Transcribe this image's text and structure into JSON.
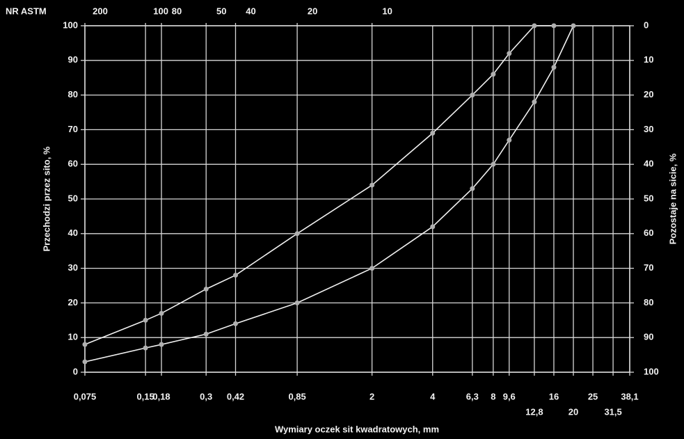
{
  "chart_data": {
    "type": "line",
    "top_axis_label": "NR ASTM",
    "xlabel": "Wymiary oczek sit kwadratowych, mm",
    "ylabel": "Przechodzi przez sito, %",
    "y2label": "Pozostaje na sicie, %",
    "xscale": "log",
    "xlim": [
      0.075,
      38.1
    ],
    "xticks": [
      {
        "value": 0.075,
        "label": "0,075"
      },
      {
        "value": 0.15,
        "label": "0,15"
      },
      {
        "value": 0.18,
        "label": "0,18"
      },
      {
        "value": 0.3,
        "label": "0,3"
      },
      {
        "value": 0.42,
        "label": "0,42"
      },
      {
        "value": 0.85,
        "label": "0,85"
      },
      2,
      4,
      {
        "value": 6.3,
        "label": "6,3"
      },
      8,
      {
        "value": 9.6,
        "label": "9,6"
      },
      {
        "value": 12.8,
        "label": "12,8"
      },
      16,
      20,
      25,
      {
        "value": 31.5,
        "label": "31,5"
      },
      {
        "value": 38.1,
        "label": "38,1"
      }
    ],
    "top_ticks": [
      {
        "value": 0.075,
        "label": "200"
      },
      {
        "value": 0.15,
        "label": "100"
      },
      {
        "value": 0.18,
        "label": "80"
      },
      {
        "value": 0.3,
        "label": "50"
      },
      {
        "value": 0.42,
        "label": "40"
      },
      {
        "value": 0.85,
        "label": "20"
      },
      {
        "value": 2,
        "label": "10"
      }
    ],
    "ylim": [
      0,
      100
    ],
    "yticks": [
      0,
      10,
      20,
      30,
      40,
      50,
      60,
      70,
      80,
      90,
      100
    ],
    "y2lim": [
      100,
      0
    ],
    "y2ticks": [
      0,
      10,
      20,
      30,
      40,
      50,
      60,
      70,
      80,
      90,
      100
    ],
    "grid": true,
    "series": [
      {
        "color": "#f0f0f0",
        "x": [
          0.075,
          0.15,
          0.18,
          0.3,
          0.42,
          0.85,
          2,
          4,
          6.3,
          8,
          9.6,
          12.8,
          16
        ],
        "values": [
          8,
          15,
          17,
          24,
          28,
          40,
          54,
          69,
          80,
          86,
          92,
          100,
          100
        ]
      },
      {
        "color": "#f0f0f0",
        "x": [
          0.075,
          0.15,
          0.18,
          0.3,
          0.42,
          0.85,
          2,
          4,
          6.3,
          8,
          9.6,
          12.8,
          16,
          20
        ],
        "values": [
          3,
          7,
          8,
          11,
          14,
          20,
          30,
          42,
          53,
          60,
          67,
          78,
          88,
          100
        ]
      }
    ]
  }
}
